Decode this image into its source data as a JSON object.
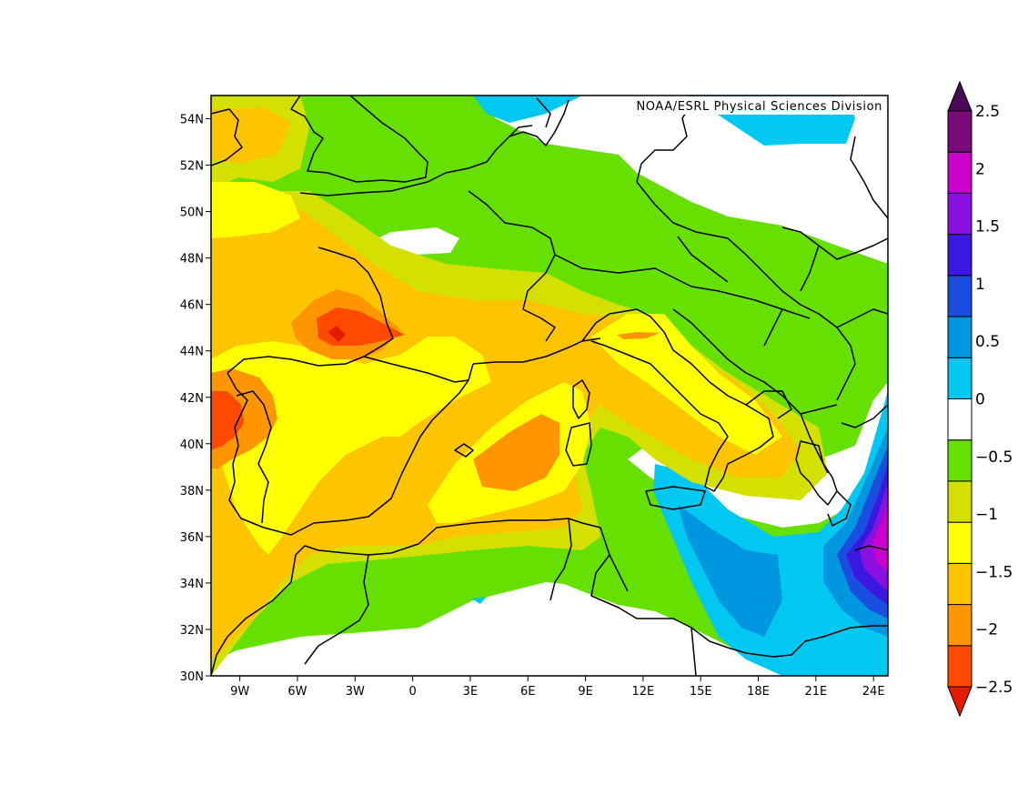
{
  "credit": "NOAA/ESRL Physical Sciences Division",
  "map": {
    "lon_range": [
      -10.5,
      24.75
    ],
    "lat_range": [
      30,
      55
    ],
    "x_ticks": [
      {
        "value": -9,
        "label": "9W"
      },
      {
        "value": -6,
        "label": "6W"
      },
      {
        "value": -3,
        "label": "3W"
      },
      {
        "value": 0,
        "label": "0"
      },
      {
        "value": 3,
        "label": "3E"
      },
      {
        "value": 6,
        "label": "6E"
      },
      {
        "value": 9,
        "label": "9E"
      },
      {
        "value": 12,
        "label": "12E"
      },
      {
        "value": 15,
        "label": "15E"
      },
      {
        "value": 18,
        "label": "18E"
      },
      {
        "value": 21,
        "label": "21E"
      },
      {
        "value": 24,
        "label": "24E"
      }
    ],
    "y_ticks": [
      {
        "value": 30,
        "label": "30N"
      },
      {
        "value": 32,
        "label": "32N"
      },
      {
        "value": 34,
        "label": "34N"
      },
      {
        "value": 36,
        "label": "36N"
      },
      {
        "value": 38,
        "label": "38N"
      },
      {
        "value": 40,
        "label": "40N"
      },
      {
        "value": 42,
        "label": "42N"
      },
      {
        "value": 44,
        "label": "44N"
      },
      {
        "value": 46,
        "label": "46N"
      },
      {
        "value": 48,
        "label": "48N"
      },
      {
        "value": 50,
        "label": "50N"
      },
      {
        "value": 52,
        "label": "52N"
      },
      {
        "value": 54,
        "label": "54N"
      }
    ]
  },
  "colorbar": {
    "levels": [
      {
        "value": -2.5,
        "label": "−2.5"
      },
      {
        "value": -2,
        "label": "−2"
      },
      {
        "value": -1.5,
        "label": "−1.5"
      },
      {
        "value": -1,
        "label": "−1"
      },
      {
        "value": -0.5,
        "label": "−0.5"
      },
      {
        "value": 0,
        "label": "0"
      },
      {
        "value": 0.5,
        "label": "0.5"
      },
      {
        "value": 1,
        "label": "1"
      },
      {
        "value": 1.5,
        "label": "1.5"
      },
      {
        "value": 2,
        "label": "2"
      },
      {
        "value": 2.5,
        "label": "2.5"
      }
    ],
    "below_color": "#e51a00",
    "above_color": "#4a0a57",
    "band_colors": [
      "#ff4a00",
      "#ff9600",
      "#ffc400",
      "#ffff00",
      "#d4e000",
      "#66e000",
      "#ffffff",
      "#00c8f0",
      "#0096e0",
      "#1a4ee0",
      "#3a18e0",
      "#8a10e0",
      "#cc00cc",
      "#7a0a7a"
    ]
  },
  "palette": {
    "red_orange": "#ff4a00",
    "orange": "#ff9600",
    "light_orange": "#ffc400",
    "yellow": "#ffff00",
    "yellow_green": "#d4e000",
    "green": "#66e000",
    "white": "#ffffff",
    "cyan": "#00c8f0",
    "blue": "#0096e0",
    "royal_blue": "#1a4ee0",
    "indigo": "#3a18e0",
    "violet": "#8a10e0",
    "magenta": "#cc00cc"
  }
}
